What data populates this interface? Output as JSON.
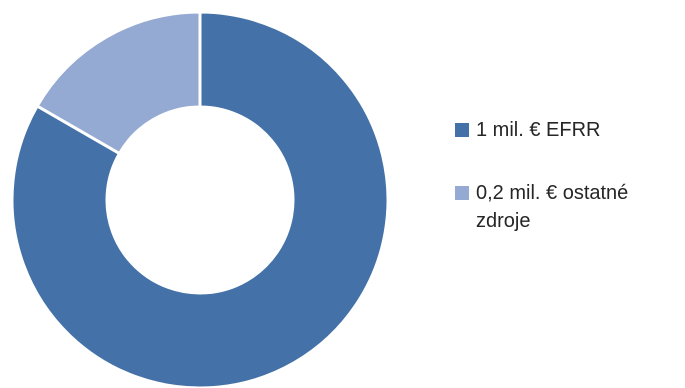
{
  "chart_data": {
    "type": "pie",
    "variant": "donut",
    "title": "",
    "categories": [
      "1 mil. € EFRR",
      "0,2 mil. € ostatné zdroje"
    ],
    "values": [
      1,
      0.2
    ],
    "units": "mil. €",
    "colors": [
      "#4472a8",
      "#95aad2"
    ],
    "legend_position": "right",
    "legend": [
      {
        "label": "1 mil. € EFRR",
        "color": "#4472a8"
      },
      {
        "label": "0,2 mil. € ostatné zdroje",
        "color": "#95aad2"
      }
    ]
  }
}
